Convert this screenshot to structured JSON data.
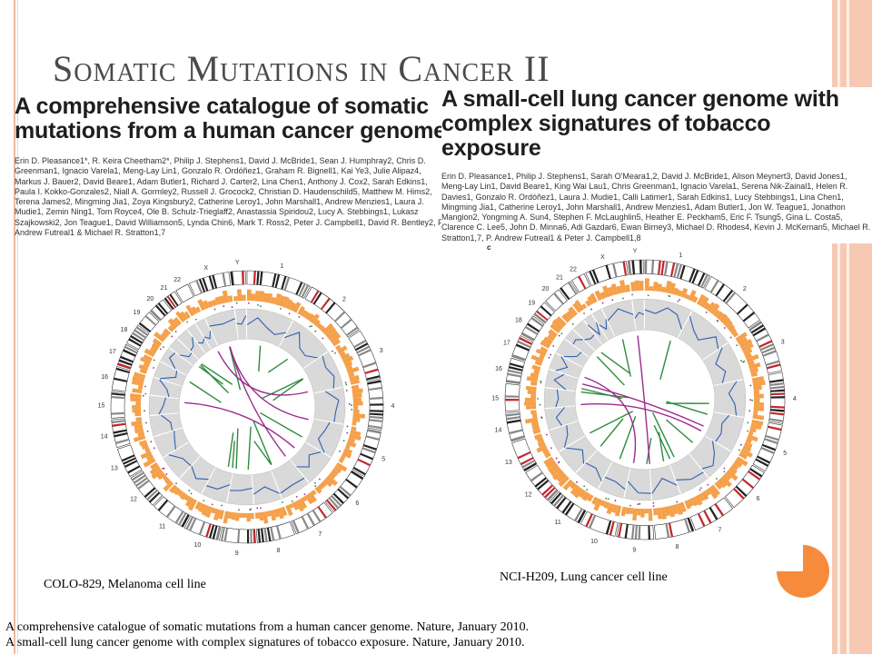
{
  "slide": {
    "title": "Somatic Mutations in Cancer II",
    "paper_left": {
      "headline": "A comprehensive catalogue of somatic mutations from a human cancer genome",
      "authors": "Erin D. Pleasance1*, R. Keira Cheetham2*, Philip J. Stephens1, David J. McBride1, Sean J. Humphray2, Chris D. Greenman1, Ignacio Varela1, Meng-Lay Lin1, Gonzalo R. Ordóñez1, Graham R. Bignell1, Kai Ye3, Julie Alipaz4, Markus J. Bauer2, David Beare1, Adam Butler1, Richard J. Carter2, Lina Chen1, Anthony J. Cox2, Sarah Edkins1, Paula I. Kokko-Gonzales2, Niall A. Gormley2, Russell J. Grocock2, Christian D. Haudenschild5, Matthew M. Hims2, Terena James2, Mingming Jia1, Zoya Kingsbury2, Catherine Leroy1, John Marshall1, Andrew Menzies1, Laura J. Mudie1, Zemin Ning1, Tom Royce4, Ole B. Schulz-Trieglaff2, Anastassia Spiridou2, Lucy A. Stebbings1, Lukasz Szajkowski2, Jon Teague1, David Williamson5, Lynda Chin6, Mark T. Ross2, Peter J. Campbell1, David R. Bentley2, P. Andrew Futreal1 & Michael R. Stratton1,7"
    },
    "paper_right": {
      "headline": "A small-cell lung cancer genome with complex signatures of tobacco exposure",
      "authors": "Erin D. Pleasance1, Philip J. Stephens1, Sarah O'Meara1,2, David J. McBride1, Alison Meynert3, David Jones1, Meng-Lay Lin1, David Beare1, King Wai Lau1, Chris Greenman1, Ignacio Varela1, Serena Nik-Zainal1, Helen R. Davies1, Gonzalo R. Ordóñez1, Laura J. Mudie1, Calli Latimer1, Sarah Edkins1, Lucy Stebbings1, Lina Chen1, Mingming Jia1, Catherine Leroy1, John Marshall1, Andrew Menzies1, Adam Butler1, Jon W. Teague1, Jonathon Mangion2, Yongming A. Sun4, Stephen F. McLaughlin5, Heather E. Peckham5, Eric F. Tsung5, Gina L. Costa5, Clarence C. Lee5, John D. Minna6, Adi Gazdar6, Ewan Birney3, Michael D. Rhodes4, Kevin J. McKernan5, Michael R. Stratton1,7, P. Andrew Futreal1 & Peter J. Campbell1,8"
    },
    "figure_letter": "c",
    "captions": {
      "left": "COLO-829, Melanoma cell line",
      "right": "NCI-H209, Lung cancer cell line"
    },
    "references": [
      "A comprehensive catalogue of somatic mutations from a human cancer genome. Nature, January 2010.",
      "A small-cell lung cancer genome with complex signatures of tobacco exposure. Nature, January 2010."
    ],
    "chromosomes": [
      "1",
      "2",
      "3",
      "4",
      "5",
      "6",
      "7",
      "8",
      "9",
      "10",
      "11",
      "12",
      "13",
      "14",
      "15",
      "16",
      "17",
      "18",
      "19",
      "20",
      "21",
      "22",
      "X",
      "Y"
    ],
    "colors": {
      "accent": "#f68b3c",
      "track_orange": "#f5a04a",
      "copy_number_blue": "#2f5fb0",
      "intrachrom_green": "#2e8b3e",
      "interchrom_purple": "#9b2c8c",
      "ring_grey": "#d9d9d9"
    }
  }
}
